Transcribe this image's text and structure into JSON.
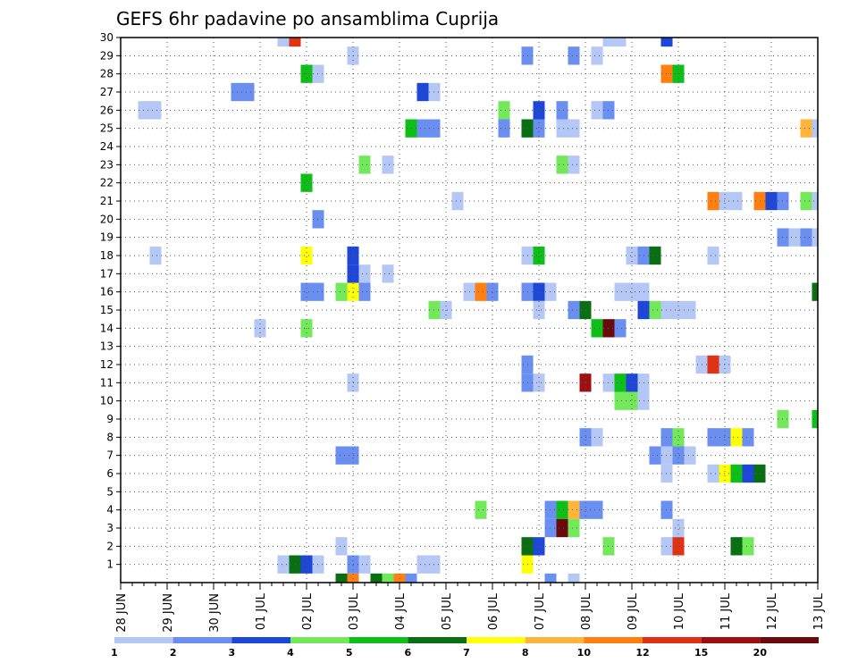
{
  "chart_data": {
    "type": "heatmap",
    "title": "GEFS 6hr padavine po ansamblima Cuprija",
    "x_tick_labels": [
      "28 JUN",
      "29 JUN",
      "30 JUN",
      "01 JUL",
      "02 JUL",
      "03 JUL",
      "04 JUL",
      "05 JUL",
      "06 JUL",
      "07 JUL",
      "08 JUL",
      "09 JUL",
      "10 JUL",
      "11 JUL",
      "12 JUL",
      "13 JUL"
    ],
    "y_tick_labels": [
      "1",
      "2",
      "3",
      "4",
      "5",
      "6",
      "7",
      "8",
      "9",
      "10",
      "11",
      "12",
      "13",
      "14",
      "15",
      "16",
      "17",
      "18",
      "19",
      "20",
      "21",
      "22",
      "23",
      "24",
      "25",
      "26",
      "27",
      "28",
      "29",
      "30"
    ],
    "x_range_days": [
      0,
      15
    ],
    "y_range": [
      0,
      30
    ],
    "grid": true,
    "legend": {
      "placement": "bottom",
      "colors": [
        "#b5c7f5",
        "#6b8ff0",
        "#1e46d8",
        "#72e85a",
        "#0fbf19",
        "#0a6e12",
        "#ffff0a",
        "#ffb43c",
        "#ff7f10",
        "#e03214",
        "#9e0f0f",
        "#6b0a0a"
      ],
      "labels": [
        "1",
        "2",
        "3",
        "4",
        "5",
        "6",
        "7",
        "8",
        "10",
        "12",
        "15",
        "20"
      ]
    },
    "cells_note": "each cell: [day offset from 28 JUN, ensemble member, color index]; color index refers to legend.colors",
    "cells": [
      [
        3.5,
        30,
        0
      ],
      [
        3.75,
        30,
        9
      ],
      [
        10.5,
        30,
        0
      ],
      [
        10.75,
        30,
        0
      ],
      [
        11.75,
        30,
        2
      ],
      [
        5,
        29,
        0
      ],
      [
        8.75,
        29,
        1
      ],
      [
        9.75,
        29,
        1
      ],
      [
        10.25,
        29,
        0
      ],
      [
        4,
        28,
        4
      ],
      [
        4.25,
        28,
        0
      ],
      [
        11.75,
        28,
        8
      ],
      [
        12,
        28,
        4
      ],
      [
        2.5,
        27,
        1
      ],
      [
        2.75,
        27,
        1
      ],
      [
        6.5,
        27,
        2
      ],
      [
        6.75,
        27,
        0
      ],
      [
        0.5,
        26,
        0
      ],
      [
        0.75,
        26,
        0
      ],
      [
        8.25,
        26,
        3
      ],
      [
        9,
        26,
        2
      ],
      [
        9.5,
        26,
        1
      ],
      [
        10.25,
        26,
        0
      ],
      [
        10.5,
        26,
        1
      ],
      [
        6.25,
        25,
        4
      ],
      [
        6.5,
        25,
        1
      ],
      [
        6.75,
        25,
        1
      ],
      [
        8.25,
        25,
        1
      ],
      [
        8.75,
        25,
        5
      ],
      [
        9,
        25,
        1
      ],
      [
        9.5,
        25,
        0
      ],
      [
        9.75,
        25,
        0
      ],
      [
        14.75,
        25,
        7
      ],
      [
        15,
        25,
        0
      ],
      [
        5.25,
        23,
        3
      ],
      [
        5.75,
        23,
        0
      ],
      [
        9.5,
        23,
        3
      ],
      [
        9.75,
        23,
        0
      ],
      [
        4,
        22,
        4
      ],
      [
        7.25,
        21,
        0
      ],
      [
        12.75,
        21,
        8
      ],
      [
        13,
        21,
        0
      ],
      [
        13.25,
        21,
        0
      ],
      [
        13.75,
        21,
        8
      ],
      [
        14,
        21,
        2
      ],
      [
        14.25,
        21,
        1
      ],
      [
        14.75,
        21,
        3
      ],
      [
        15,
        21,
        0
      ],
      [
        4.25,
        20,
        1
      ],
      [
        14.25,
        19,
        1
      ],
      [
        14.5,
        19,
        0
      ],
      [
        14.75,
        19,
        1
      ],
      [
        15,
        19,
        0
      ],
      [
        0.75,
        18,
        0
      ],
      [
        4,
        18,
        6
      ],
      [
        5,
        18,
        2
      ],
      [
        8.75,
        18,
        0
      ],
      [
        9,
        18,
        4
      ],
      [
        11,
        18,
        0
      ],
      [
        11.25,
        18,
        1
      ],
      [
        11.5,
        18,
        5
      ],
      [
        12.75,
        18,
        0
      ],
      [
        5,
        17,
        2
      ],
      [
        5.25,
        17,
        0
      ],
      [
        5.75,
        17,
        0
      ],
      [
        4,
        16,
        1
      ],
      [
        4.25,
        16,
        1
      ],
      [
        4.75,
        16,
        3
      ],
      [
        5,
        16,
        6
      ],
      [
        5.25,
        16,
        1
      ],
      [
        7.5,
        16,
        0
      ],
      [
        7.75,
        16,
        8
      ],
      [
        8,
        16,
        1
      ],
      [
        8.75,
        16,
        1
      ],
      [
        9,
        16,
        2
      ],
      [
        9.25,
        16,
        0
      ],
      [
        10.75,
        16,
        0
      ],
      [
        11,
        16,
        0
      ],
      [
        11.25,
        16,
        0
      ],
      [
        15,
        16,
        5
      ],
      [
        6.75,
        15,
        3
      ],
      [
        7,
        15,
        0
      ],
      [
        9,
        15,
        0
      ],
      [
        9.75,
        15,
        1
      ],
      [
        10,
        15,
        5
      ],
      [
        11.25,
        15,
        2
      ],
      [
        11.5,
        15,
        3
      ],
      [
        11.75,
        15,
        0
      ],
      [
        12,
        15,
        0
      ],
      [
        12.25,
        15,
        0
      ],
      [
        3,
        14,
        0
      ],
      [
        4,
        14,
        3
      ],
      [
        10.25,
        14,
        4
      ],
      [
        10.5,
        14,
        11
      ],
      [
        10.75,
        14,
        1
      ],
      [
        8.75,
        12,
        1
      ],
      [
        12.5,
        12,
        0
      ],
      [
        12.75,
        12,
        9
      ],
      [
        13,
        12,
        0
      ],
      [
        5,
        11,
        0
      ],
      [
        8.75,
        11,
        1
      ],
      [
        9,
        11,
        0
      ],
      [
        10,
        11,
        10
      ],
      [
        10.5,
        11,
        0
      ],
      [
        10.75,
        11,
        4
      ],
      [
        11,
        11,
        2
      ],
      [
        11.25,
        11,
        0
      ],
      [
        10.75,
        10,
        3
      ],
      [
        11,
        10,
        3
      ],
      [
        11.25,
        10,
        0
      ],
      [
        14.25,
        9,
        3
      ],
      [
        15,
        9,
        4
      ],
      [
        10,
        8,
        1
      ],
      [
        10.25,
        8,
        0
      ],
      [
        11.75,
        8,
        1
      ],
      [
        12,
        8,
        3
      ],
      [
        12.75,
        8,
        1
      ],
      [
        13,
        8,
        1
      ],
      [
        13.25,
        8,
        6
      ],
      [
        13.5,
        8,
        1
      ],
      [
        4.75,
        7,
        1
      ],
      [
        5,
        7,
        1
      ],
      [
        11.5,
        7,
        1
      ],
      [
        11.75,
        7,
        0
      ],
      [
        12,
        7,
        1
      ],
      [
        12.25,
        7,
        0
      ],
      [
        11.75,
        6,
        0
      ],
      [
        12.75,
        6,
        0
      ],
      [
        13,
        6,
        6
      ],
      [
        13.25,
        6,
        4
      ],
      [
        13.5,
        6,
        2
      ],
      [
        13.75,
        6,
        5
      ],
      [
        7.75,
        4,
        3
      ],
      [
        9.25,
        4,
        1
      ],
      [
        9.5,
        4,
        4
      ],
      [
        9.75,
        4,
        7
      ],
      [
        10,
        4,
        1
      ],
      [
        10.25,
        4,
        1
      ],
      [
        11.75,
        4,
        1
      ],
      [
        9.25,
        3,
        1
      ],
      [
        9.5,
        3,
        11
      ],
      [
        9.75,
        3,
        3
      ],
      [
        12,
        3,
        0
      ],
      [
        4.75,
        2,
        0
      ],
      [
        8.75,
        2,
        5
      ],
      [
        9,
        2,
        2
      ],
      [
        10.5,
        2,
        3
      ],
      [
        11.75,
        2,
        0
      ],
      [
        12,
        2,
        9
      ],
      [
        13.25,
        2,
        5
      ],
      [
        13.5,
        2,
        3
      ],
      [
        3.5,
        1,
        0
      ],
      [
        3.75,
        1,
        5
      ],
      [
        4,
        1,
        2
      ],
      [
        4.25,
        1,
        0
      ],
      [
        5,
        1,
        1
      ],
      [
        5.25,
        1,
        0
      ],
      [
        6.5,
        1,
        0
      ],
      [
        6.75,
        1,
        0
      ],
      [
        8.75,
        1,
        6
      ],
      [
        4.75,
        0,
        5
      ],
      [
        5,
        0,
        8
      ],
      [
        5.5,
        0,
        5
      ],
      [
        5.75,
        0,
        3
      ],
      [
        6,
        0,
        8
      ],
      [
        6.25,
        0,
        1
      ],
      [
        9.25,
        0,
        1
      ],
      [
        9.75,
        0,
        0
      ]
    ]
  }
}
